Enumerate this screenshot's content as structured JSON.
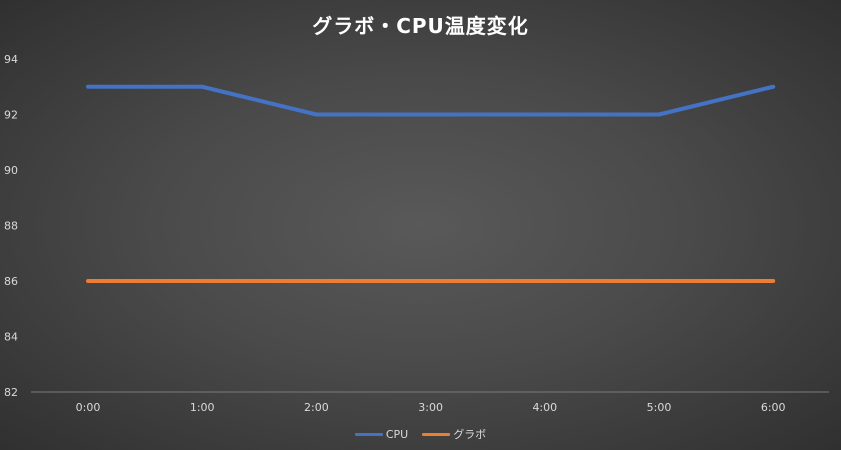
{
  "chart_data": {
    "type": "line",
    "title": "グラボ・CPU温度変化",
    "categories": [
      "0:00",
      "1:00",
      "2:00",
      "3:00",
      "4:00",
      "5:00",
      "6:00"
    ],
    "ylim": [
      82,
      94
    ],
    "yticks": [
      82,
      84,
      86,
      88,
      90,
      92,
      94
    ],
    "grid": false,
    "legend_position": "bottom",
    "series": [
      {
        "name": "CPU",
        "color": "#4472c4",
        "values": [
          93,
          93,
          92,
          92,
          92,
          92,
          93
        ]
      },
      {
        "name": "グラボ",
        "color": "#ed7d31",
        "values": [
          86,
          86,
          86,
          86,
          86,
          86,
          86
        ]
      }
    ]
  }
}
